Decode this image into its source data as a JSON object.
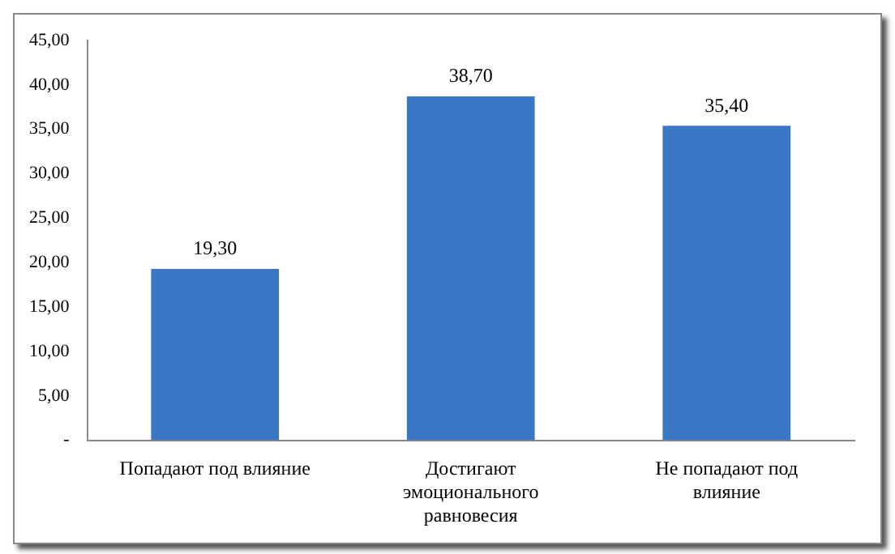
{
  "chart_data": {
    "type": "bar",
    "categories": [
      "Попадают под влияние",
      "Достигают эмоционального равновесия",
      "Не попадают под влияние"
    ],
    "values": [
      19.3,
      38.7,
      35.4
    ],
    "value_labels": [
      "19,30",
      "38,70",
      "35,40"
    ],
    "color": "#3a78c6",
    "ylim": [
      0,
      45
    ],
    "yticks": [
      {
        "value": 0,
        "label": "-"
      },
      {
        "value": 5,
        "label": "5,00"
      },
      {
        "value": 10,
        "label": "10,00"
      },
      {
        "value": 15,
        "label": "15,00"
      },
      {
        "value": 20,
        "label": "20,00"
      },
      {
        "value": 25,
        "label": "25,00"
      },
      {
        "value": 30,
        "label": "30,00"
      },
      {
        "value": 35,
        "label": "35,00"
      },
      {
        "value": 40,
        "label": "40,00"
      },
      {
        "value": 45,
        "label": "45,00"
      }
    ],
    "grid": false,
    "legend": false
  }
}
